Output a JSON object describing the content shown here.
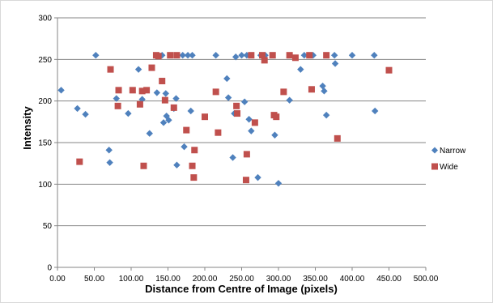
{
  "chart_data": {
    "type": "scatter",
    "title": "",
    "xlabel": "Distance from Centre of Image (pixels)",
    "ylabel": "Intensity",
    "xlim": [
      0,
      500
    ],
    "ylim": [
      0,
      300
    ],
    "x_ticks": [
      0,
      50,
      100,
      150,
      200,
      250,
      300,
      350,
      400,
      450,
      500
    ],
    "x_tick_labels": [
      "0.00",
      "50.00",
      "100.00",
      "150.00",
      "200.00",
      "250.00",
      "300.00",
      "350.00",
      "400.00",
      "450.00",
      "500.00"
    ],
    "y_ticks": [
      0,
      50,
      100,
      150,
      200,
      250,
      300
    ],
    "y_tick_labels": [
      "0",
      "50",
      "100",
      "150",
      "200",
      "250",
      "300"
    ],
    "grid": "horizontal",
    "legend_position": "right",
    "series": [
      {
        "name": "Narrow",
        "marker": "diamond",
        "color": "#4f81bd",
        "points": [
          [
            5,
            213
          ],
          [
            27,
            191
          ],
          [
            38,
            184
          ],
          [
            52,
            255
          ],
          [
            70,
            141
          ],
          [
            71,
            126
          ],
          [
            80,
            203
          ],
          [
            96,
            185
          ],
          [
            110,
            238
          ],
          [
            115,
            202
          ],
          [
            125,
            161
          ],
          [
            135,
            210
          ],
          [
            142,
            255
          ],
          [
            144,
            174
          ],
          [
            147,
            209
          ],
          [
            148,
            182
          ],
          [
            151,
            177
          ],
          [
            158,
            191
          ],
          [
            161,
            203
          ],
          [
            162,
            123
          ],
          [
            170,
            255
          ],
          [
            172,
            145
          ],
          [
            177,
            255
          ],
          [
            181,
            188
          ],
          [
            183,
            255
          ],
          [
            215,
            255
          ],
          [
            230,
            227
          ],
          [
            232,
            204
          ],
          [
            238,
            132
          ],
          [
            240,
            185
          ],
          [
            242,
            253
          ],
          [
            250,
            255
          ],
          [
            254,
            199
          ],
          [
            257,
            255
          ],
          [
            260,
            178
          ],
          [
            263,
            164
          ],
          [
            272,
            108
          ],
          [
            276,
            255
          ],
          [
            282,
            255
          ],
          [
            295,
            159
          ],
          [
            300,
            101
          ],
          [
            315,
            201
          ],
          [
            330,
            238
          ],
          [
            335,
            255
          ],
          [
            347,
            255
          ],
          [
            360,
            218
          ],
          [
            362,
            212
          ],
          [
            365,
            183
          ],
          [
            376,
            255
          ],
          [
            377,
            245
          ],
          [
            400,
            255
          ],
          [
            430,
            255
          ],
          [
            431,
            188
          ]
        ]
      },
      {
        "name": "Wide",
        "marker": "square",
        "color": "#c0504d",
        "points": [
          [
            30,
            127
          ],
          [
            72,
            238
          ],
          [
            82,
            194
          ],
          [
            83,
            213
          ],
          [
            102,
            213
          ],
          [
            112,
            196
          ],
          [
            115,
            212
          ],
          [
            117,
            122
          ],
          [
            121,
            213
          ],
          [
            128,
            240
          ],
          [
            134,
            255
          ],
          [
            137,
            254
          ],
          [
            142,
            224
          ],
          [
            146,
            201
          ],
          [
            153,
            255
          ],
          [
            158,
            192
          ],
          [
            162,
            255
          ],
          [
            175,
            165
          ],
          [
            183,
            122
          ],
          [
            185,
            108
          ],
          [
            186,
            141
          ],
          [
            200,
            181
          ],
          [
            215,
            211
          ],
          [
            218,
            162
          ],
          [
            243,
            194
          ],
          [
            244,
            185
          ],
          [
            256,
            105
          ],
          [
            257,
            136
          ],
          [
            263,
            255
          ],
          [
            268,
            174
          ],
          [
            278,
            255
          ],
          [
            281,
            249
          ],
          [
            292,
            255
          ],
          [
            294,
            183
          ],
          [
            297,
            181
          ],
          [
            307,
            211
          ],
          [
            315,
            255
          ],
          [
            323,
            252
          ],
          [
            342,
            255
          ],
          [
            345,
            214
          ],
          [
            365,
            255
          ],
          [
            380,
            155
          ],
          [
            450,
            237
          ]
        ]
      }
    ]
  }
}
